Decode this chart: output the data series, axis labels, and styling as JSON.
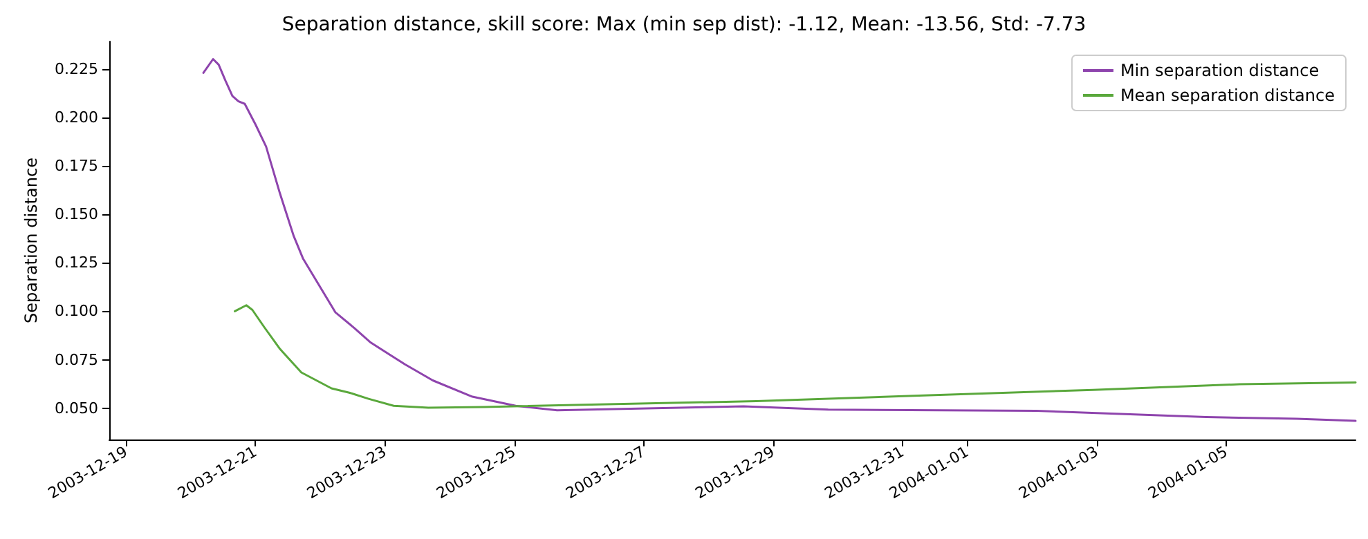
{
  "chart_data": {
    "type": "line",
    "title": "Separation distance, skill score: Max (min sep dist): -1.12, Mean: -13.56, Std: -7.73",
    "ylabel": "Separation distance",
    "xlim": [
      "2003-12-18T17:45",
      "2004-01-07T00:00"
    ],
    "xticks": [
      "2003-12-19",
      "2003-12-21",
      "2003-12-23",
      "2003-12-25",
      "2003-12-27",
      "2003-12-29",
      "2003-12-31",
      "2004-01-01",
      "2004-01-03",
      "2004-01-05"
    ],
    "ylim": [
      0.0338,
      0.2393
    ],
    "yticks": [
      {
        "value": 0.05,
        "label": "0.050"
      },
      {
        "value": 0.075,
        "label": "0.075"
      },
      {
        "value": 0.1,
        "label": "0.100"
      },
      {
        "value": 0.125,
        "label": "0.125"
      },
      {
        "value": 0.15,
        "label": "0.150"
      },
      {
        "value": 0.175,
        "label": "0.175"
      },
      {
        "value": 0.2,
        "label": "0.200"
      },
      {
        "value": 0.225,
        "label": "0.225"
      }
    ],
    "grid": false,
    "legend": "top right",
    "marker": "none",
    "line_style": "solid",
    "series": [
      {
        "name": "Min separation distance",
        "color": "#8e44ad",
        "x": [
          "2003-12-20T04:40",
          "2003-12-20T08:15",
          "2003-12-20T10:20",
          "2003-12-20T12:50",
          "2003-12-20T15:25",
          "2003-12-20T17:40",
          "2003-12-20T20:00",
          "2003-12-21T00:00",
          "2003-12-21T03:55",
          "2003-12-21T09:05",
          "2003-12-21T14:10",
          "2003-12-21T17:35",
          "2003-12-22T05:35",
          "2003-12-22T12:45",
          "2003-12-22T18:45",
          "2003-12-23T07:25",
          "2003-12-23T17:45",
          "2003-12-24T08:25",
          "2003-12-25T00:30",
          "2003-12-25T15:50",
          "2003-12-28T13:00",
          "2003-12-29T20:25",
          "2004-01-02T01:40",
          "2004-01-04T16:35",
          "2004-01-06T02:10",
          "2004-01-07T00:00"
        ],
        "values": [
          0.2231,
          0.2302,
          0.2273,
          0.2191,
          0.2112,
          0.2084,
          0.2071,
          0.1964,
          0.185,
          0.1607,
          0.1388,
          0.1273,
          0.0995,
          0.0912,
          0.0838,
          0.0726,
          0.0643,
          0.0559,
          0.0512,
          0.0489,
          0.0509,
          0.0492,
          0.0486,
          0.0454,
          0.0445,
          0.0434
        ]
      },
      {
        "name": "Mean separation distance",
        "color": "#5aa83c",
        "x": [
          "2003-12-20T16:20",
          "2003-12-20T20:35",
          "2003-12-20T22:50",
          "2003-12-21T03:20",
          "2003-12-21T09:05",
          "2003-12-21T17:00",
          "2003-12-22T04:10",
          "2003-12-22T11:00",
          "2003-12-22T17:55",
          "2003-12-23T03:15",
          "2003-12-23T16:05",
          "2003-12-24T12:45",
          "2003-12-28T17:45",
          "2003-12-31T07:55",
          "2004-01-02T22:35",
          "2004-01-05T05:00",
          "2004-01-07T00:00"
        ],
        "values": [
          0.1,
          0.1031,
          0.1007,
          0.0916,
          0.0805,
          0.0684,
          0.0602,
          0.0579,
          0.0548,
          0.0512,
          0.0502,
          0.0506,
          0.0536,
          0.0565,
          0.0594,
          0.0623,
          0.0632
        ]
      }
    ]
  }
}
